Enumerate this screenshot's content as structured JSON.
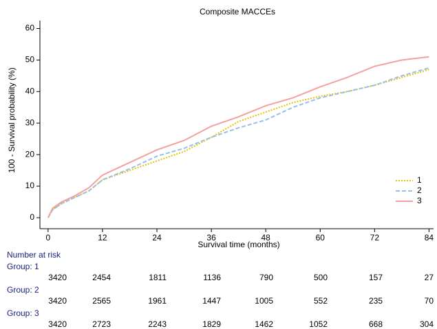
{
  "chart_data": {
    "type": "line",
    "title": "Composite MACCEs",
    "xlabel": "Survival time (months)",
    "ylabel": "100 - Survival probability (%)",
    "x": [
      0,
      1,
      2,
      3,
      6,
      9,
      12,
      18,
      24,
      30,
      36,
      42,
      48,
      54,
      60,
      66,
      72,
      78,
      84
    ],
    "series": [
      {
        "name": "1",
        "color": "#e8c000",
        "dash": "dotted",
        "values": [
          0,
          2.5,
          3.5,
          4.5,
          6.5,
          8.5,
          12,
          15,
          18,
          21,
          25.5,
          30.5,
          33.5,
          36.5,
          38.5,
          40,
          42,
          44.5,
          47
        ]
      },
      {
        "name": "2",
        "color": "#94c0ea",
        "dash": "dashed",
        "values": [
          0,
          2.5,
          3.5,
          4.5,
          6.5,
          8.5,
          12,
          15.5,
          19.5,
          22,
          25.5,
          28.5,
          31,
          35,
          38,
          40,
          42,
          45,
          47.5
        ]
      },
      {
        "name": "3",
        "color": "#f4a0a0",
        "dash": "solid",
        "values": [
          0,
          3,
          4,
          5,
          7,
          9.5,
          13.5,
          17.5,
          21.5,
          24.5,
          29,
          32,
          35.5,
          38,
          41.5,
          44.5,
          48,
          50,
          51
        ]
      }
    ],
    "xlim": [
      -1.8,
      85
    ],
    "ylim": [
      -3.5,
      62.5
    ],
    "xticks": [
      0,
      12,
      24,
      36,
      48,
      60,
      72,
      84
    ],
    "yticks": [
      0,
      10,
      20,
      30,
      40,
      50,
      60
    ],
    "legend": "lower right"
  },
  "risk_table": {
    "title": "Number at risk",
    "groups": [
      {
        "label": "Group: 1",
        "values": [
          3420,
          2454,
          1811,
          1136,
          790,
          500,
          157,
          27
        ]
      },
      {
        "label": "Group: 2",
        "values": [
          3420,
          2565,
          1961,
          1447,
          1005,
          552,
          235,
          70
        ]
      },
      {
        "label": "Group: 3",
        "values": [
          3420,
          2723,
          2243,
          1829,
          1462,
          1052,
          668,
          304
        ]
      }
    ]
  }
}
